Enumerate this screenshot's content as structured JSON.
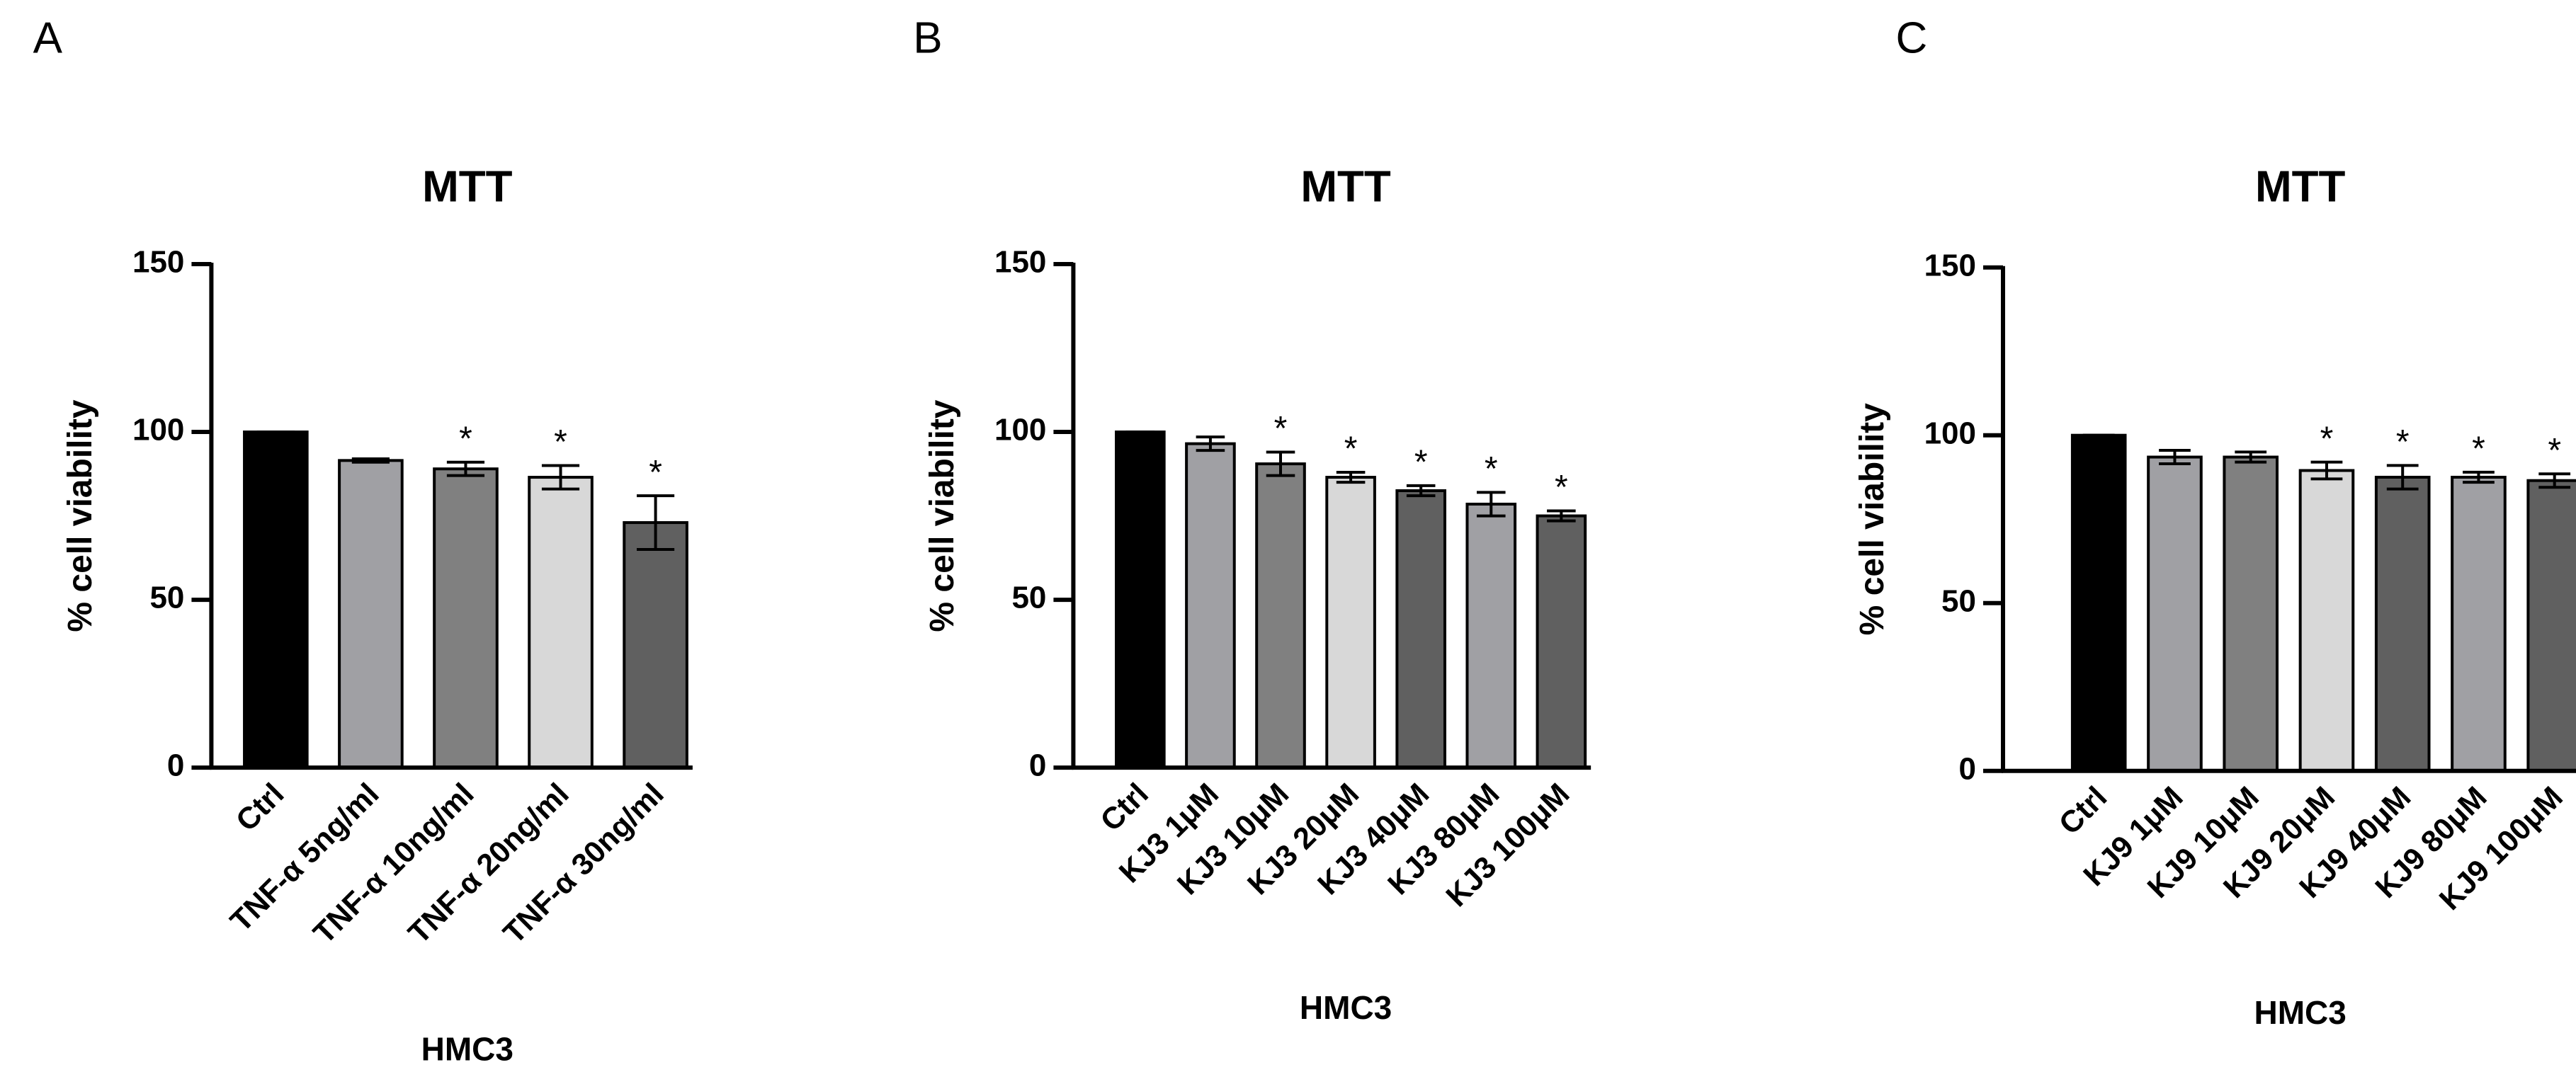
{
  "chart_data": [
    {
      "type": "bar",
      "panel": "A",
      "title": "MTT",
      "y_label": "% cell viability",
      "x_label": "HMC3",
      "categories": [
        "Ctrl",
        "TNF-α 5ng/ml",
        "TNF-α 10ng/ml",
        "TNF-α 20ng/ml",
        "TNF-α 30ng/ml"
      ],
      "values": [
        100,
        91.5,
        89,
        86.5,
        73
      ],
      "errors": [
        0,
        0.5,
        2,
        3.5,
        8
      ],
      "significance": [
        null,
        null,
        "*",
        "*",
        "*"
      ],
      "colors": [
        "#000000",
        "#a0a0a4",
        "#808080",
        "#d8d8d8",
        "#606060"
      ],
      "ylim": [
        0,
        150
      ],
      "yticks": [
        0,
        50,
        100,
        150
      ]
    },
    {
      "type": "bar",
      "panel": "B",
      "title": "MTT",
      "y_label": "% cell viability",
      "x_label": "HMC3",
      "categories": [
        "Ctrl",
        "KJ3 1μM",
        "KJ3 10μM",
        "KJ3 20μM",
        "KJ3 40μM",
        "KJ3 80μM",
        "KJ3 100μM"
      ],
      "values": [
        100,
        96.5,
        90.5,
        86.5,
        82.5,
        78.5,
        75
      ],
      "errors": [
        0,
        2,
        3.5,
        1.5,
        1.5,
        3.5,
        1.5
      ],
      "significance": [
        null,
        null,
        "*",
        "*",
        "*",
        "*",
        "*"
      ],
      "colors": [
        "#000000",
        "#a0a0a4",
        "#808080",
        "#d8d8d8",
        "#606060",
        "#a0a0a4",
        "#606060"
      ],
      "ylim": [
        0,
        150
      ],
      "yticks": [
        0,
        50,
        100,
        150
      ]
    },
    {
      "type": "bar",
      "panel": "C",
      "title": "MTT",
      "y_label": "% cell viability",
      "x_label": "HMC3",
      "categories": [
        "Ctrl",
        "KJ9 1μM",
        "KJ9 10μM",
        "KJ9 20μM",
        "KJ9 40μM",
        "KJ9 80μM",
        "KJ9 100μM"
      ],
      "values": [
        100,
        93.5,
        93.5,
        89.5,
        87.5,
        87.5,
        86.5
      ],
      "errors": [
        0,
        2,
        1.5,
        2.5,
        3.5,
        1.5,
        2
      ],
      "significance": [
        null,
        null,
        null,
        "*",
        "*",
        "*",
        "*"
      ],
      "colors": [
        "#000000",
        "#a0a0a4",
        "#808080",
        "#d8d8d8",
        "#606060",
        "#a0a0a4",
        "#606060"
      ],
      "ylim": [
        0,
        150
      ],
      "yticks": [
        0,
        50,
        100,
        150
      ]
    }
  ]
}
